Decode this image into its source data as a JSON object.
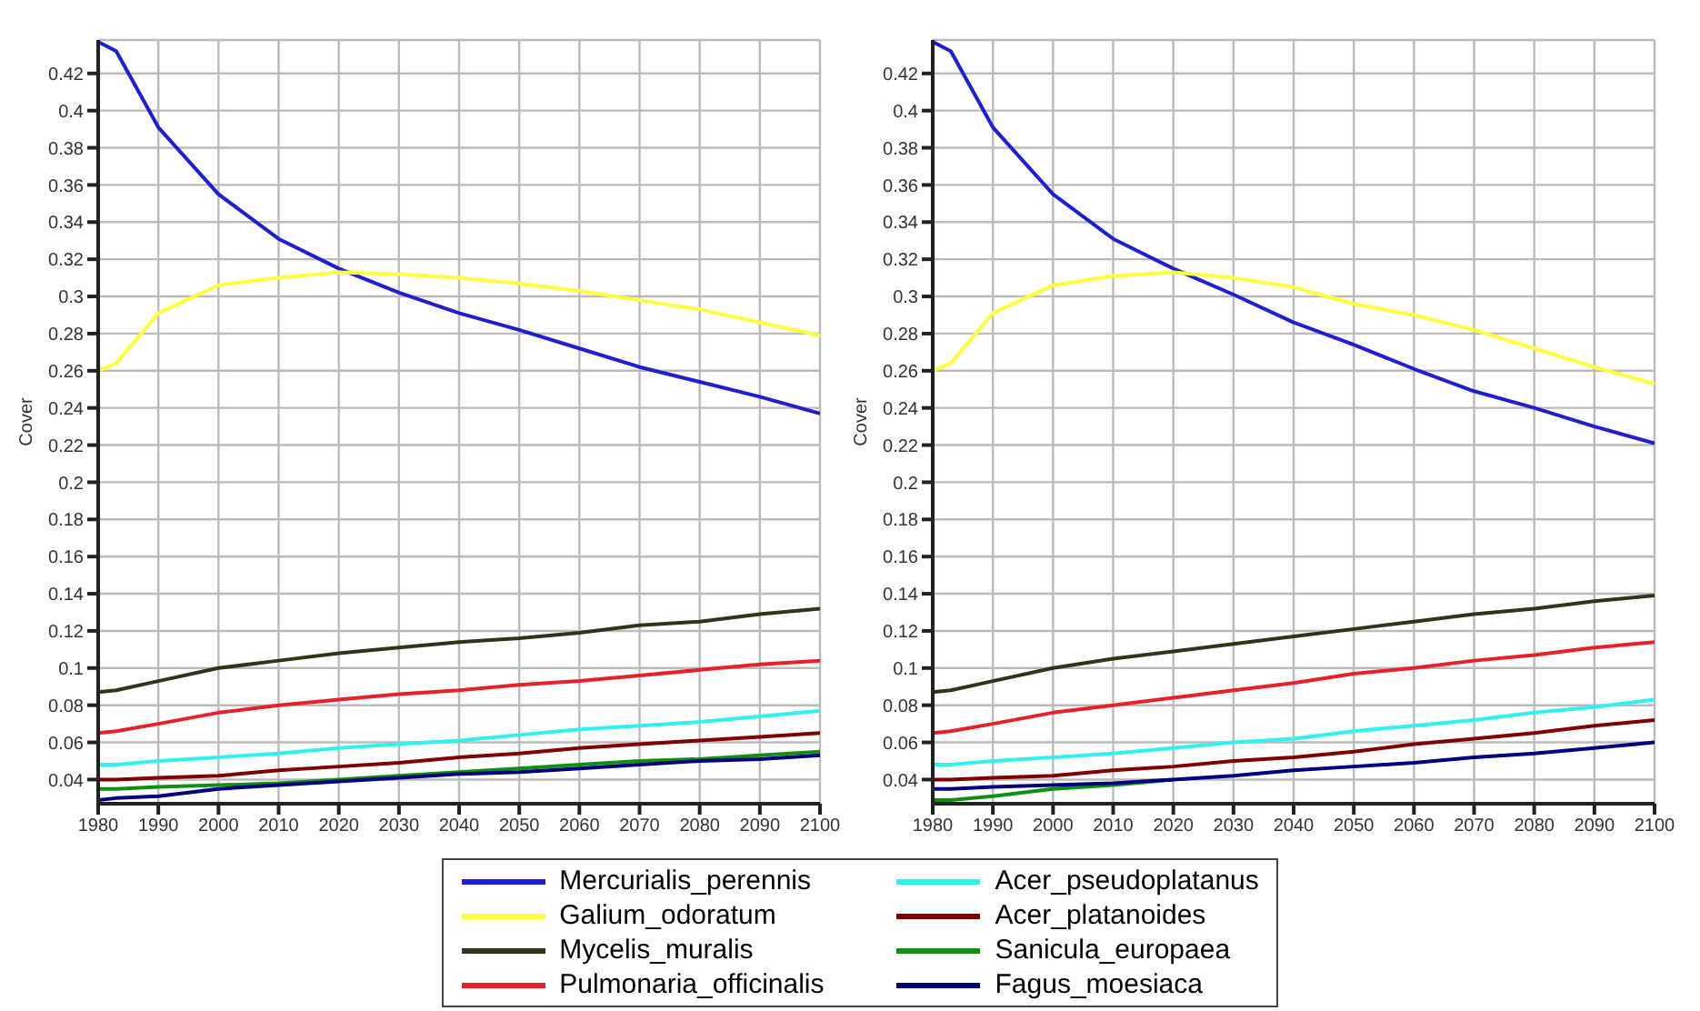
{
  "chart_data": [
    {
      "type": "line",
      "ylabel": "Cover",
      "x": [
        1980,
        1983,
        1990,
        2000,
        2010,
        2020,
        2030,
        2040,
        2050,
        2060,
        2070,
        2080,
        2090,
        2100
      ],
      "xlim": [
        1980,
        2100
      ],
      "xticks": [
        1980,
        1990,
        2000,
        2010,
        2020,
        2030,
        2040,
        2050,
        2060,
        2070,
        2080,
        2090,
        2100
      ],
      "ylim": [
        0.027,
        0.438
      ],
      "yticks": [
        0.04,
        0.06,
        0.08,
        0.1,
        0.12,
        0.14,
        0.16,
        0.18,
        0.2,
        0.22,
        0.24,
        0.26,
        0.28,
        0.3,
        0.32,
        0.34,
        0.36,
        0.38,
        0.4,
        0.42
      ],
      "grid": true,
      "legend": "bottom",
      "series": [
        {
          "name": "Mercurialis_perennis",
          "color": "#1f1fd0",
          "values": [
            0.437,
            0.432,
            0.391,
            0.355,
            0.331,
            0.315,
            0.302,
            0.291,
            0.282,
            0.272,
            0.262,
            0.254,
            0.246,
            0.237
          ]
        },
        {
          "name": "Galium_odoratum",
          "color": "#ffff40",
          "values": [
            0.26,
            0.264,
            0.291,
            0.306,
            0.31,
            0.313,
            0.312,
            0.31,
            0.307,
            0.303,
            0.298,
            0.293,
            0.286,
            0.279
          ]
        },
        {
          "name": "Mycelis_muralis",
          "color": "#333319",
          "values": [
            0.087,
            0.088,
            0.093,
            0.1,
            0.104,
            0.108,
            0.111,
            0.114,
            0.116,
            0.119,
            0.123,
            0.125,
            0.129,
            0.132
          ]
        },
        {
          "name": "Pulmonaria_officinalis",
          "color": "#e8202a",
          "values": [
            0.065,
            0.066,
            0.07,
            0.076,
            0.08,
            0.083,
            0.086,
            0.088,
            0.091,
            0.093,
            0.096,
            0.099,
            0.102,
            0.104
          ]
        },
        {
          "name": "Acer_pseudoplatanus",
          "color": "#30f0f0",
          "values": [
            0.048,
            0.048,
            0.05,
            0.052,
            0.054,
            0.057,
            0.059,
            0.061,
            0.064,
            0.067,
            0.069,
            0.071,
            0.074,
            0.077
          ]
        },
        {
          "name": "Acer_platanoides",
          "color": "#800000",
          "values": [
            0.04,
            0.04,
            0.041,
            0.042,
            0.045,
            0.047,
            0.049,
            0.052,
            0.054,
            0.057,
            0.059,
            0.061,
            0.063,
            0.065
          ]
        },
        {
          "name": "Sanicula_europaea",
          "color": "#109010",
          "values": [
            0.035,
            0.035,
            0.036,
            0.037,
            0.038,
            0.04,
            0.042,
            0.044,
            0.046,
            0.048,
            0.05,
            0.051,
            0.053,
            0.055
          ]
        },
        {
          "name": "Fagus_moesiaca",
          "color": "#000080",
          "values": [
            0.029,
            0.03,
            0.031,
            0.035,
            0.037,
            0.039,
            0.041,
            0.043,
            0.044,
            0.046,
            0.048,
            0.05,
            0.051,
            0.053
          ]
        }
      ]
    },
    {
      "type": "line",
      "ylabel": "Cover",
      "x": [
        1980,
        1983,
        1990,
        2000,
        2010,
        2020,
        2030,
        2040,
        2050,
        2060,
        2070,
        2080,
        2090,
        2100
      ],
      "xlim": [
        1980,
        2100
      ],
      "xticks": [
        1980,
        1990,
        2000,
        2010,
        2020,
        2030,
        2040,
        2050,
        2060,
        2070,
        2080,
        2090,
        2100
      ],
      "ylim": [
        0.027,
        0.438
      ],
      "yticks": [
        0.04,
        0.06,
        0.08,
        0.1,
        0.12,
        0.14,
        0.16,
        0.18,
        0.2,
        0.22,
        0.24,
        0.26,
        0.28,
        0.3,
        0.32,
        0.34,
        0.36,
        0.38,
        0.4,
        0.42
      ],
      "grid": true,
      "series": [
        {
          "color": "#1f1fd0",
          "values": [
            0.437,
            0.432,
            0.391,
            0.355,
            0.331,
            0.315,
            0.301,
            0.286,
            0.274,
            0.261,
            0.249,
            0.24,
            0.23,
            0.221
          ]
        },
        {
          "color": "#ffff40",
          "values": [
            0.26,
            0.264,
            0.291,
            0.306,
            0.311,
            0.313,
            0.31,
            0.305,
            0.296,
            0.29,
            0.282,
            0.272,
            0.262,
            0.253
          ]
        },
        {
          "color": "#333319",
          "values": [
            0.087,
            0.088,
            0.093,
            0.1,
            0.105,
            0.109,
            0.113,
            0.117,
            0.121,
            0.125,
            0.129,
            0.132,
            0.136,
            0.139
          ]
        },
        {
          "color": "#e8202a",
          "values": [
            0.065,
            0.066,
            0.07,
            0.076,
            0.08,
            0.084,
            0.088,
            0.092,
            0.097,
            0.1,
            0.104,
            0.107,
            0.111,
            0.114
          ]
        },
        {
          "color": "#30f0f0",
          "values": [
            0.048,
            0.048,
            0.05,
            0.052,
            0.054,
            0.057,
            0.06,
            0.062,
            0.066,
            0.069,
            0.072,
            0.076,
            0.079,
            0.083
          ]
        },
        {
          "color": "#800000",
          "values": [
            0.04,
            0.04,
            0.041,
            0.042,
            0.045,
            0.047,
            0.05,
            0.052,
            0.055,
            0.059,
            0.062,
            0.065,
            0.069,
            0.072
          ]
        },
        {
          "color": "#109010",
          "values": [
            0.029,
            0.029,
            0.031,
            0.035,
            0.037,
            0.04,
            null,
            null,
            null,
            null,
            null,
            null,
            null,
            null
          ]
        },
        {
          "color": "#000080",
          "values": [
            0.035,
            0.035,
            0.036,
            0.037,
            0.038,
            0.04,
            0.042,
            0.045,
            0.047,
            0.049,
            0.052,
            0.054,
            0.057,
            0.06
          ]
        }
      ]
    }
  ]
}
